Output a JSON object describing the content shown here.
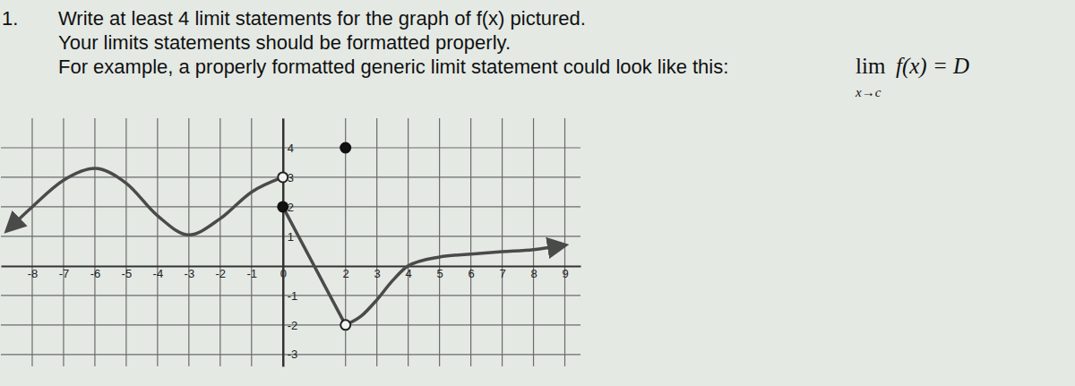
{
  "question": {
    "number": "1.",
    "lines": [
      "Write at least 4 limit statements for the graph of f(x) pictured.",
      "Your limits statements should be formatted properly.",
      "For example, a properly formatted generic limit statement could look like this:"
    ],
    "example": {
      "lim": "lim",
      "expression": "f(x) = D",
      "subscript": "x→c"
    }
  },
  "chart_data": {
    "type": "line",
    "grid": true,
    "xlim": [
      -9,
      9.5
    ],
    "ylim": [
      -3.4,
      5
    ],
    "xticks": [
      -8,
      -7,
      -6,
      -5,
      -4,
      -3,
      -2,
      -1,
      0,
      2,
      3,
      4,
      5,
      6,
      7,
      8,
      9
    ],
    "yticks": [
      -3,
      -2,
      -1,
      1,
      2,
      3,
      4
    ],
    "series": [
      {
        "type": "line",
        "color": "#4a4a4a",
        "line_style": "smooth",
        "x": [
          -8.8,
          -8,
          -7,
          -6,
          -5,
          -4,
          -3,
          -2,
          -1,
          0
        ],
        "values": [
          1.2,
          2.0,
          2.9,
          3.3,
          2.8,
          1.7,
          1.05,
          1.6,
          2.5,
          3
        ]
      },
      {
        "type": "line",
        "color": "#4a4a4a",
        "line_style": "solid",
        "x": [
          0,
          2
        ],
        "values": [
          2,
          -2
        ]
      },
      {
        "type": "line",
        "color": "#4a4a4a",
        "line_style": "smooth",
        "x": [
          2,
          2.5,
          3,
          3.5,
          4,
          5,
          6,
          7,
          8,
          9
        ],
        "values": [
          -2,
          -1.7,
          -1.15,
          -0.5,
          0,
          0.3,
          0.4,
          0.48,
          0.55,
          0.7
        ]
      },
      {
        "type": "scatter",
        "color": "#222222",
        "marker": "open",
        "x": [
          0,
          2
        ],
        "values": [
          3,
          -2
        ]
      },
      {
        "type": "scatter",
        "color": "#111111",
        "marker": "filled",
        "x": [
          0,
          2
        ],
        "values": [
          2,
          4
        ]
      }
    ]
  }
}
